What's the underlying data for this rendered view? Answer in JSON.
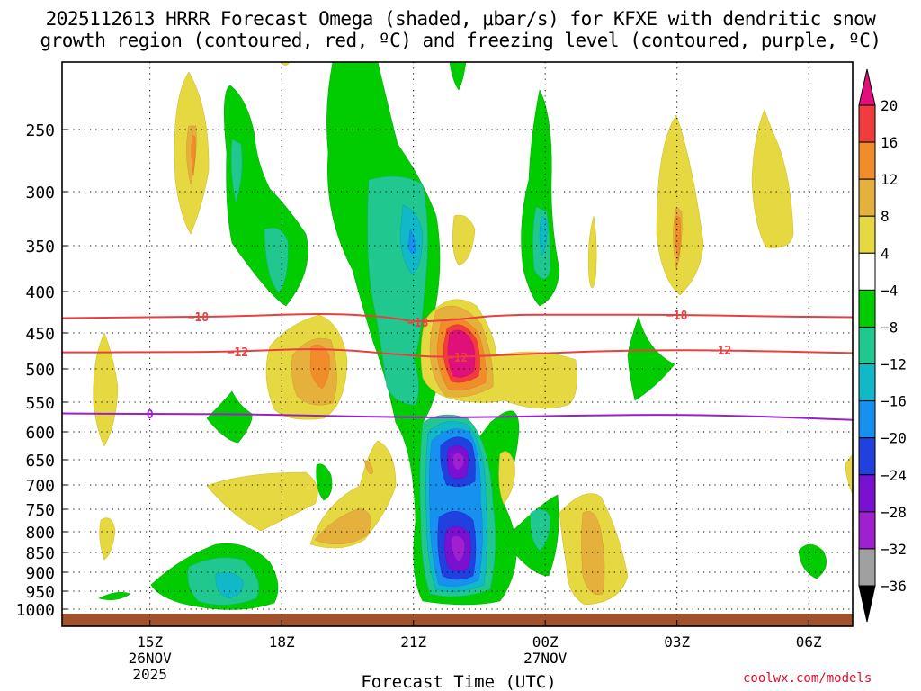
{
  "title": {
    "line1": "2025112613 HRRR Forecast Omega (shaded, μbar/s) for KFXE with dendritic snow",
    "line2": "growth region (contoured, red, ºC) and freezing level (contoured, purple, ºC)"
  },
  "credit": "coolwx.com/models",
  "chart_data": {
    "type": "time-height cross section (filled contour)",
    "xlabel": "Forecast Time (UTC)",
    "ylabel": "",
    "x_ticks": [
      {
        "label": "15Z",
        "sub": [
          "26NOV",
          "2025"
        ],
        "hour": 15
      },
      {
        "label": "18Z",
        "sub": [],
        "hour": 18
      },
      {
        "label": "21Z",
        "sub": [],
        "hour": 21
      },
      {
        "label": "00Z",
        "sub": [
          "27NOV"
        ],
        "hour": 24
      },
      {
        "label": "03Z",
        "sub": [],
        "hour": 27
      },
      {
        "label": "06Z",
        "sub": [],
        "hour": 30
      }
    ],
    "x_range_hours": [
      13.0,
      31.0
    ],
    "y_ticks_hpa": [
      250,
      300,
      350,
      400,
      450,
      500,
      550,
      600,
      650,
      700,
      750,
      800,
      850,
      900,
      950,
      1000
    ],
    "y_range_hpa": [
      200,
      1025
    ],
    "colorbar": {
      "levels": [
        20,
        16,
        12,
        8,
        4,
        -4,
        -8,
        -12,
        -16,
        -20,
        -24,
        -28,
        -32,
        -36
      ],
      "bins": [
        {
          "range": "> 20",
          "color": "#e0107a"
        },
        {
          "range": "16 to 20",
          "color": "#f03c3c"
        },
        {
          "range": "12 to 16",
          "color": "#f08c2a"
        },
        {
          "range": "8 to 12",
          "color": "#e6b03c"
        },
        {
          "range": "4 to 8",
          "color": "#e6d840"
        },
        {
          "range": "-4 to 4",
          "color": "#ffffff"
        },
        {
          "range": "-8 to -4",
          "color": "#00cc00"
        },
        {
          "range": "-12 to -8",
          "color": "#20c890"
        },
        {
          "range": "-16 to -12",
          "color": "#10b8c8"
        },
        {
          "range": "-20 to -16",
          "color": "#1890f0"
        },
        {
          "range": "-24 to -20",
          "color": "#2040e0"
        },
        {
          "range": "-28 to -24",
          "color": "#7a10d0"
        },
        {
          "range": "-32 to -28",
          "color": "#a020d0"
        },
        {
          "range": "-36 to -32",
          "color": "#a0a0a0"
        },
        {
          "range": "< -36",
          "color": "#000000"
        }
      ]
    },
    "contours": [
      {
        "name": "dendritic growth -18",
        "value": -18,
        "unit": "ºC",
        "color": "#e84040",
        "points": [
          [
            13.0,
            432
          ],
          [
            15.0,
            431
          ],
          [
            17.0,
            430
          ],
          [
            19.0,
            426
          ],
          [
            20.5,
            431
          ],
          [
            21.0,
            437
          ],
          [
            22.0,
            434
          ],
          [
            23.0,
            428
          ],
          [
            25.0,
            428
          ],
          [
            27.0,
            428
          ],
          [
            29.0,
            430
          ],
          [
            31.0,
            431
          ]
        ],
        "labels_at_hours": [
          16.1,
          21.1,
          27.0
        ]
      },
      {
        "name": "dendritic growth -12",
        "value": -12,
        "unit": "ºC",
        "color": "#e84040",
        "points": [
          [
            13.0,
            477
          ],
          [
            15.0,
            477
          ],
          [
            17.0,
            476
          ],
          [
            19.0,
            471
          ],
          [
            21.0,
            482
          ],
          [
            22.0,
            484
          ],
          [
            24.0,
            478
          ],
          [
            26.0,
            474
          ],
          [
            28.0,
            474
          ],
          [
            31.0,
            478
          ]
        ],
        "labels_at_hours": [
          17.0,
          22.0,
          28.0
        ]
      },
      {
        "name": "freezing level",
        "value": 0,
        "unit": "ºC",
        "color": "#9a20c8",
        "points": [
          [
            13.0,
            569
          ],
          [
            15.0,
            570
          ],
          [
            17.0,
            570
          ],
          [
            19.0,
            573
          ],
          [
            21.0,
            576
          ],
          [
            23.0,
            575
          ],
          [
            25.0,
            572
          ],
          [
            27.0,
            571
          ],
          [
            29.0,
            574
          ],
          [
            31.0,
            580
          ]
        ],
        "labels_at_hours": [
          15.0
        ]
      }
    ],
    "shaded_features": [
      {
        "desc": "upward motion core upper",
        "center_hour": 22.0,
        "center_hpa": 640,
        "min_omega": -28
      },
      {
        "desc": "upward motion core lower",
        "center_hour": 22.0,
        "center_hpa": 835,
        "min_omega": -28
      },
      {
        "desc": "downward motion max",
        "center_hour": 22.0,
        "center_hpa": 480,
        "max_omega": 20
      }
    ]
  }
}
